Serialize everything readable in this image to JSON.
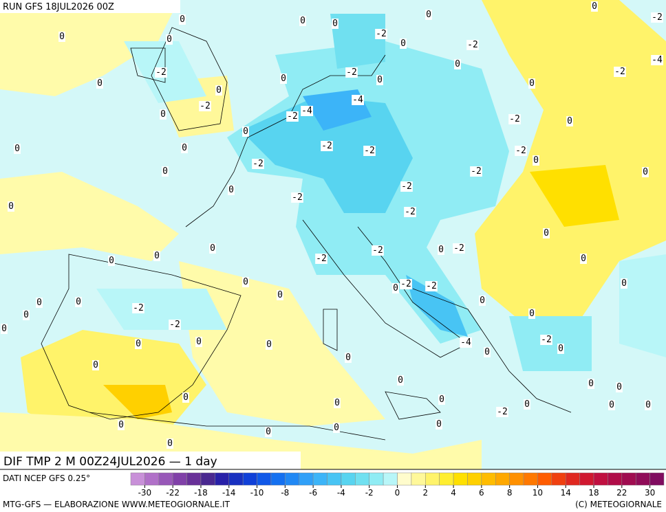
{
  "header": {
    "run": "RUN GFS 18JUL2026 00Z"
  },
  "map": {
    "title": "DIF TMP 2 M 00Z24JUL2026 — 1 day",
    "contour_labels": [
      0,
      0,
      0,
      0,
      0,
      -2,
      0,
      0,
      -2,
      0,
      -2,
      -4,
      0,
      -2,
      -2,
      0,
      -2,
      0,
      0,
      0,
      0,
      -4,
      -2,
      -4,
      -2,
      0,
      -2,
      0,
      0,
      -2,
      -2,
      0,
      0,
      -2,
      0,
      -2,
      -2,
      0,
      0,
      0,
      -2,
      -2,
      0,
      -2,
      0,
      -2,
      0,
      -2,
      0,
      -2,
      0,
      0,
      0,
      0,
      -2,
      -2,
      0,
      0,
      0,
      0,
      0,
      -2,
      0,
      0,
      0,
      -2,
      0,
      0,
      -4,
      -2,
      0,
      0,
      0,
      0,
      0,
      0,
      0,
      0,
      0,
      0,
      0,
      0,
      0,
      0,
      0,
      -2,
      0,
      0,
      0,
      0,
      0
    ]
  },
  "legend": {
    "source": "DATI NCEP GFS 0.25°",
    "colors": [
      "#c890d8",
      "#b070c8",
      "#9858b8",
      "#8040a8",
      "#683098",
      "#4a2890",
      "#2820a8",
      "#1830c0",
      "#1040d8",
      "#1058e8",
      "#1470f0",
      "#2088f4",
      "#30a0f8",
      "#3cb4f8",
      "#48c4f4",
      "#58d4f0",
      "#70e0f0",
      "#90ecf4",
      "#b8f6f8",
      "#fffccc",
      "#fff89a",
      "#fff36a",
      "#ffee30",
      "#ffe000",
      "#ffd000",
      "#ffbc00",
      "#ffa800",
      "#ff9000",
      "#ff7800",
      "#ff5c00",
      "#f04010",
      "#e02820",
      "#d01830",
      "#c01040",
      "#b00c48",
      "#a00c50",
      "#900c58",
      "#800c60"
    ],
    "ticks": [
      -30,
      -22,
      -18,
      -14,
      -10,
      -8,
      -6,
      -4,
      -2,
      0,
      2,
      4,
      6,
      8,
      10,
      14,
      18,
      22,
      30
    ]
  },
  "footer": {
    "credit": "MTG-GFS — ELABORAZIONE WWW.METEOGIORNALE.IT",
    "copyright": "(C) METEOGIORNALE"
  }
}
